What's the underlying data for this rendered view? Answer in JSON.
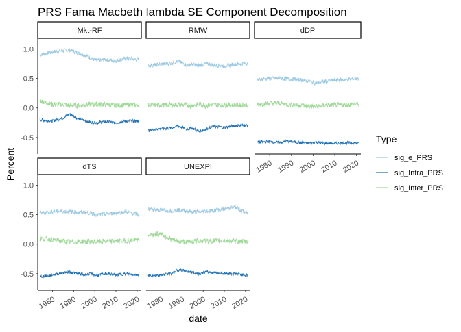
{
  "chart_data": {
    "type": "line",
    "title": "PRS Fama Macbeth lambda SE Component Decomposition",
    "xlabel": "date",
    "ylabel": "Percent",
    "xlim": [
      1973,
      2022
    ],
    "ylim": [
      -0.78,
      1.18
    ],
    "x_ticks": [
      1980,
      1990,
      2000,
      2010,
      2020
    ],
    "y_ticks": [
      -0.5,
      0.0,
      0.5,
      1.0
    ],
    "y_tick_labels": [
      "-0.5",
      "0.0",
      "0.5",
      "1.0"
    ],
    "grid": false,
    "legend_position": "right",
    "legend": {
      "title": "Type",
      "entries": [
        {
          "label": "sig_e_PRS",
          "color": "#9ECAE1"
        },
        {
          "label": "sig_Intra_PRS",
          "color": "#2171B5"
        },
        {
          "label": "sig_Inter_PRS",
          "color": "#A1D99B"
        }
      ]
    },
    "x_range": [
      1974,
      2021
    ],
    "panels": [
      {
        "name": "Mkt-RF",
        "series": [
          {
            "name": "sig_e_PRS",
            "x": [
              1974,
              1980,
              1985,
              1988,
              1992,
              1995,
              1998,
              2001,
              2005,
              2010,
              2015,
              2021
            ],
            "y": [
              0.9,
              0.95,
              0.97,
              0.98,
              0.93,
              0.9,
              0.85,
              0.8,
              0.82,
              0.8,
              0.84,
              0.82
            ]
          },
          {
            "name": "sig_Intra_PRS",
            "x": [
              1974,
              1980,
              1985,
              1988,
              1992,
              1995,
              1998,
              2001,
              2005,
              2010,
              2015,
              2021
            ],
            "y": [
              -0.2,
              -0.22,
              -0.17,
              -0.1,
              -0.18,
              -0.21,
              -0.24,
              -0.25,
              -0.23,
              -0.25,
              -0.22,
              -0.22
            ]
          },
          {
            "name": "sig_Inter_PRS",
            "x": [
              1974,
              1980,
              1985,
              1988,
              1992,
              1995,
              1998,
              2001,
              2005,
              2010,
              2015,
              2021
            ],
            "y": [
              0.12,
              0.06,
              0.06,
              0.04,
              0.04,
              0.05,
              0.06,
              0.06,
              0.06,
              0.04,
              0.05,
              0.05
            ]
          }
        ]
      },
      {
        "name": "RMW",
        "series": [
          {
            "name": "sig_e_PRS",
            "x": [
              1974,
              1980,
              1985,
              1988,
              1992,
              1995,
              1998,
              2001,
              2005,
              2010,
              2015,
              2021
            ],
            "y": [
              0.72,
              0.74,
              0.76,
              0.79,
              0.73,
              0.74,
              0.72,
              0.75,
              0.73,
              0.71,
              0.74,
              0.76
            ]
          },
          {
            "name": "sig_Intra_PRS",
            "x": [
              1974,
              1980,
              1985,
              1988,
              1992,
              1995,
              1998,
              2001,
              2005,
              2010,
              2015,
              2021
            ],
            "y": [
              -0.38,
              -0.35,
              -0.34,
              -0.3,
              -0.36,
              -0.34,
              -0.4,
              -0.36,
              -0.31,
              -0.33,
              -0.3,
              -0.29
            ]
          },
          {
            "name": "sig_Inter_PRS",
            "x": [
              1974,
              1980,
              1985,
              1988,
              1992,
              1995,
              1998,
              2001,
              2005,
              2010,
              2015,
              2021
            ],
            "y": [
              0.04,
              0.05,
              0.05,
              0.06,
              0.05,
              0.04,
              0.06,
              0.04,
              0.05,
              0.05,
              0.05,
              0.05
            ]
          }
        ]
      },
      {
        "name": "dDP",
        "series": [
          {
            "name": "sig_e_PRS",
            "x": [
              1974,
              1980,
              1985,
              1988,
              1992,
              1995,
              1998,
              2001,
              2005,
              2010,
              2015,
              2021
            ],
            "y": [
              0.48,
              0.5,
              0.5,
              0.49,
              0.48,
              0.47,
              0.46,
              0.42,
              0.45,
              0.47,
              0.48,
              0.5
            ]
          },
          {
            "name": "sig_Intra_PRS",
            "x": [
              1974,
              1980,
              1985,
              1988,
              1992,
              1995,
              1998,
              2001,
              2005,
              2010,
              2015,
              2021
            ],
            "y": [
              -0.58,
              -0.57,
              -0.59,
              -0.56,
              -0.58,
              -0.59,
              -0.6,
              -0.58,
              -0.6,
              -0.6,
              -0.59,
              -0.6
            ]
          },
          {
            "name": "sig_Inter_PRS",
            "x": [
              1974,
              1980,
              1985,
              1988,
              1992,
              1995,
              1998,
              2001,
              2005,
              2010,
              2015,
              2021
            ],
            "y": [
              0.06,
              0.08,
              0.08,
              0.06,
              0.05,
              0.04,
              0.03,
              0.02,
              0.04,
              0.05,
              0.05,
              0.07
            ]
          }
        ]
      },
      {
        "name": "dTS",
        "series": [
          {
            "name": "sig_e_PRS",
            "x": [
              1974,
              1980,
              1985,
              1988,
              1992,
              1995,
              1998,
              2001,
              2005,
              2010,
              2015,
              2021
            ],
            "y": [
              0.53,
              0.55,
              0.56,
              0.55,
              0.54,
              0.54,
              0.53,
              0.5,
              0.51,
              0.53,
              0.55,
              0.5
            ]
          },
          {
            "name": "sig_Intra_PRS",
            "x": [
              1974,
              1980,
              1985,
              1988,
              1992,
              1995,
              1998,
              2001,
              2005,
              2010,
              2015,
              2021
            ],
            "y": [
              -0.55,
              -0.52,
              -0.48,
              -0.47,
              -0.5,
              -0.52,
              -0.5,
              -0.53,
              -0.5,
              -0.52,
              -0.5,
              -0.52
            ]
          },
          {
            "name": "sig_Inter_PRS",
            "x": [
              1974,
              1980,
              1985,
              1988,
              1992,
              1995,
              1998,
              2001,
              2005,
              2010,
              2015,
              2021
            ],
            "y": [
              0.1,
              0.08,
              0.05,
              0.04,
              0.04,
              0.05,
              0.04,
              0.04,
              0.05,
              0.05,
              0.06,
              0.07
            ]
          }
        ]
      },
      {
        "name": "UNEXPI",
        "series": [
          {
            "name": "sig_e_PRS",
            "x": [
              1974,
              1980,
              1985,
              1988,
              1992,
              1995,
              1998,
              2001,
              2005,
              2010,
              2015,
              2021
            ],
            "y": [
              0.6,
              0.58,
              0.57,
              0.58,
              0.56,
              0.55,
              0.55,
              0.56,
              0.57,
              0.6,
              0.63,
              0.52
            ]
          },
          {
            "name": "sig_Intra_PRS",
            "x": [
              1974,
              1980,
              1985,
              1988,
              1992,
              1995,
              1998,
              2001,
              2005,
              2010,
              2015,
              2021
            ],
            "y": [
              -0.53,
              -0.52,
              -0.5,
              -0.44,
              -0.45,
              -0.48,
              -0.5,
              -0.47,
              -0.48,
              -0.5,
              -0.5,
              -0.53
            ]
          },
          {
            "name": "sig_Inter_PRS",
            "x": [
              1974,
              1980,
              1985,
              1988,
              1992,
              1995,
              1998,
              2001,
              2005,
              2010,
              2015,
              2021
            ],
            "y": [
              0.15,
              0.18,
              0.08,
              0.05,
              0.04,
              0.05,
              0.06,
              0.05,
              0.06,
              0.06,
              0.05,
              0.04
            ]
          }
        ]
      }
    ]
  }
}
